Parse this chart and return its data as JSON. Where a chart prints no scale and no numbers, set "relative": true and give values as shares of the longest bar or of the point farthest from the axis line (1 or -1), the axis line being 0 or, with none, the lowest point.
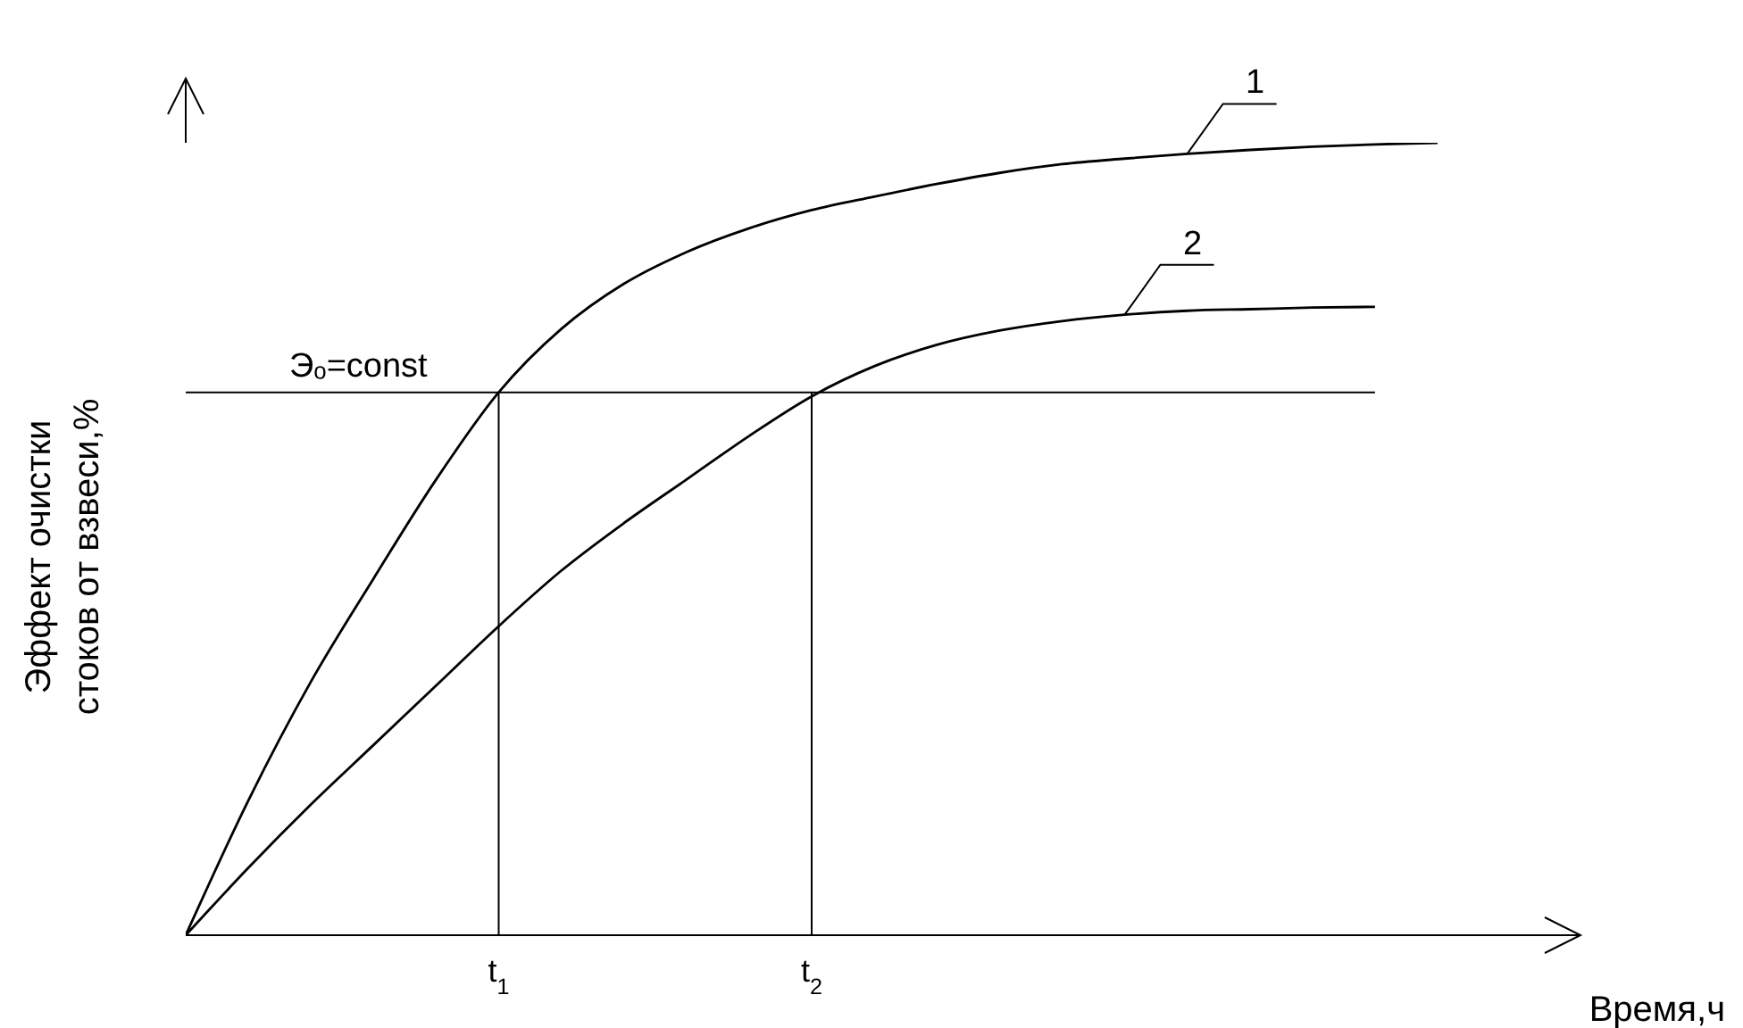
{
  "chart_data": {
    "type": "line",
    "relative": true,
    "xlabel": "Время,ч",
    "ylabel": "Эффект очистки\nстоков от взвеси,%",
    "categories": [
      null,
      null,
      null,
      null,
      null,
      "t$_{1}$",
      null,
      null,
      null,
      null,
      "t$_{2}$",
      null,
      null,
      null,
      null,
      null,
      null,
      null,
      null,
      null,
      null
    ],
    "series": [
      {
        "name": "1",
        "color": "#000000",
        "values": [
          0,
          0.17,
          0.32,
          0.45,
          0.575,
          0.685,
          0.765,
          0.822,
          0.862,
          0.892,
          0.915,
          0.932,
          0.948,
          0.962,
          0.973,
          0.98,
          0.986,
          0.991,
          0.995,
          0.998,
          1
        ]
      },
      {
        "name": "2",
        "color": "#000000",
        "values": [
          0,
          0.085,
          0.165,
          0.24,
          0.315,
          0.39,
          0.46,
          0.52,
          0.575,
          0.63,
          0.68,
          0.718,
          0.745,
          0.763,
          0.775,
          0.783,
          0.788,
          0.79,
          0.792,
          0.793,
          null
        ]
      }
    ],
    "ref_lines": [
      {
        "axis": "y",
        "value": 0.685,
        "label": "Эₒ=const"
      },
      {
        "axis": "x",
        "value": "t$_{1}$"
      },
      {
        "axis": "x",
        "value": "t$_{2}$"
      }
    ]
  }
}
